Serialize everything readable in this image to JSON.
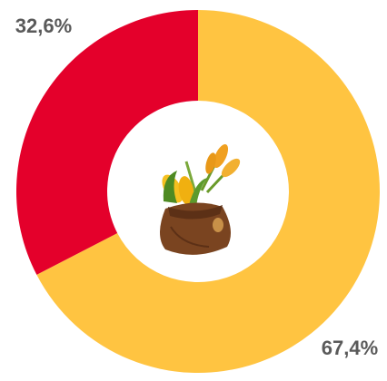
{
  "chart_data": {
    "type": "donut",
    "values": [
      67.4,
      32.6
    ],
    "value_labels": [
      "67,4%",
      "32,6%"
    ],
    "colors": [
      "#ffc441",
      "#e4002b"
    ]
  }
}
